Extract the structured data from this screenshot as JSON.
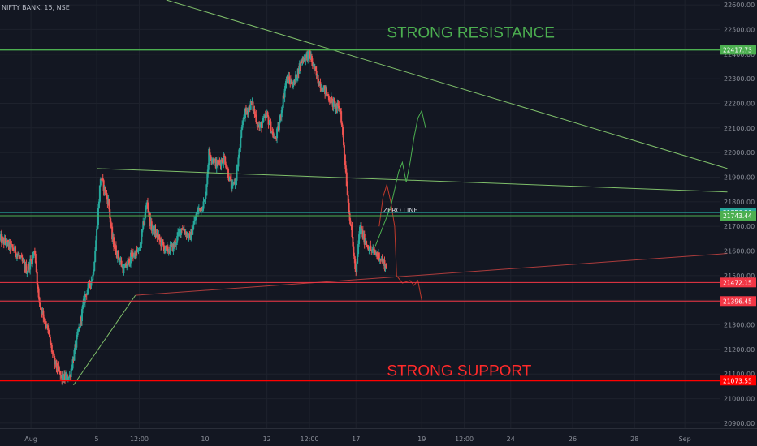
{
  "chart_data": {
    "type": "candlestick",
    "title": "NIFTY BANK, 15, NSE",
    "ylim": [
      20880,
      22620
    ],
    "y_ticks": [
      20900,
      21000,
      21100,
      21200,
      21300,
      21400,
      21500,
      21600,
      21700,
      21800,
      21900,
      22000,
      22100,
      22200,
      22300,
      22400,
      22500,
      22600
    ],
    "y_tick_labels": [
      "20900.00",
      "21000.00",
      "21100.00",
      "21200.00",
      "21300.00",
      "21400.00",
      "21500.00",
      "21600.00",
      "21700.00",
      "21800.00",
      "21900.00",
      "22000.00",
      "22100.00",
      "22200.00",
      "22300.00",
      "22400.00",
      "22500.00",
      "22600.00"
    ],
    "x_ticks": [
      {
        "label": "Aug",
        "t": 0
      },
      {
        "label": "5",
        "t": 17
      },
      {
        "label": "12:00",
        "t": 28
      },
      {
        "label": "10",
        "t": 45
      },
      {
        "label": "12",
        "t": 61
      },
      {
        "label": "12:00",
        "t": 72
      },
      {
        "label": "17",
        "t": 84
      },
      {
        "label": "19",
        "t": 101
      },
      {
        "label": "12:00",
        "t": 112
      },
      {
        "label": "24",
        "t": 124
      },
      {
        "label": "26",
        "t": 140
      },
      {
        "label": "28",
        "t": 156
      },
      {
        "label": "Sep",
        "t": 169
      }
    ],
    "x_range": [
      -8,
      178
    ],
    "price_path": [
      [
        -8,
        21650
      ],
      [
        -4,
        21600
      ],
      [
        -1,
        21520
      ],
      [
        1,
        21600
      ],
      [
        2,
        21400
      ],
      [
        4,
        21300
      ],
      [
        6,
        21150
      ],
      [
        8,
        21080
      ],
      [
        10,
        21090
      ],
      [
        12,
        21250
      ],
      [
        14,
        21420
      ],
      [
        16,
        21500
      ],
      [
        17,
        21680
      ],
      [
        18,
        21900
      ],
      [
        20,
        21800
      ],
      [
        21,
        21650
      ],
      [
        22,
        21600
      ],
      [
        24,
        21520
      ],
      [
        26,
        21580
      ],
      [
        28,
        21600
      ],
      [
        30,
        21800
      ],
      [
        31,
        21700
      ],
      [
        33,
        21650
      ],
      [
        35,
        21600
      ],
      [
        37,
        21620
      ],
      [
        39,
        21700
      ],
      [
        41,
        21650
      ],
      [
        43,
        21760
      ],
      [
        45,
        21800
      ],
      [
        46,
        22000
      ],
      [
        48,
        21950
      ],
      [
        50,
        21980
      ],
      [
        52,
        21850
      ],
      [
        53,
        21900
      ],
      [
        55,
        22150
      ],
      [
        57,
        22200
      ],
      [
        59,
        22100
      ],
      [
        61,
        22150
      ],
      [
        63,
        22050
      ],
      [
        64,
        22100
      ],
      [
        66,
        22300
      ],
      [
        68,
        22280
      ],
      [
        70,
        22380
      ],
      [
        72,
        22400
      ],
      [
        74,
        22300
      ],
      [
        76,
        22250
      ],
      [
        78,
        22200
      ],
      [
        80,
        22170
      ],
      [
        81,
        22000
      ],
      [
        82,
        21800
      ],
      [
        84,
        21500
      ],
      [
        85,
        21700
      ],
      [
        86,
        21650
      ],
      [
        88,
        21600
      ],
      [
        90,
        21580
      ],
      [
        92,
        21530
      ]
    ],
    "levels": [
      {
        "name": "STRONG RESISTANCE",
        "value": 22417.73,
        "label": "22417.73",
        "color": "#4caf50"
      },
      {
        "name": "",
        "value": 21756.2,
        "label": "21756.20",
        "color": "#26a69a"
      },
      {
        "name": "",
        "value": 21743.44,
        "label": "21743.44",
        "color": "#4caf50"
      },
      {
        "name": "",
        "value": 21472.15,
        "label": "21472.15",
        "color": "#f23645"
      },
      {
        "name": "",
        "value": 21396.45,
        "label": "21396.45",
        "color": "#f23645"
      },
      {
        "name": "STRONG SUPPORT",
        "value": 21073.55,
        "label": "21073.55",
        "color": "#ff0000"
      }
    ],
    "trendlines": [
      {
        "color": "#7fbf6a",
        "points": [
          [
            35,
            22620
          ],
          [
            180,
            21935
          ]
        ]
      },
      {
        "color": "#7fbf6a",
        "points": [
          [
            17,
            21935
          ],
          [
            180,
            21840
          ]
        ]
      },
      {
        "color": "#7fbf6a",
        "points": [
          [
            11,
            21055
          ],
          [
            27,
            21420
          ]
        ]
      },
      {
        "color": "#ad3c3c",
        "points": [
          [
            27,
            21420
          ],
          [
            180,
            21590
          ]
        ]
      }
    ],
    "projections": [
      {
        "color": "#4caf50",
        "points": [
          [
            89,
            21620
          ],
          [
            91,
            21700
          ],
          [
            93,
            21780
          ],
          [
            94,
            21850
          ],
          [
            95,
            21920
          ],
          [
            96,
            21960
          ],
          [
            97,
            21880
          ],
          [
            98,
            21960
          ],
          [
            99,
            22060
          ],
          [
            100,
            22140
          ],
          [
            101,
            22170
          ],
          [
            102,
            22100
          ]
        ]
      },
      {
        "color": "#c0392b",
        "points": [
          [
            90,
            21700
          ],
          [
            91,
            21820
          ],
          [
            92,
            21870
          ],
          [
            93,
            21800
          ],
          [
            94,
            21700
          ],
          [
            94.5,
            21500
          ],
          [
            96,
            21470
          ],
          [
            98,
            21480
          ],
          [
            99,
            21460
          ],
          [
            100,
            21480
          ],
          [
            101,
            21400
          ]
        ]
      }
    ],
    "annotations": [
      {
        "text": "STRONG RESISTANCE",
        "x": 92,
        "y": 22467,
        "color": "#4caf50"
      },
      {
        "text": "ZERO LINE",
        "x": 91,
        "y": 21756,
        "color": "#d0d4dc"
      },
      {
        "text": "STRONG SUPPORT",
        "x": 92,
        "y": 21093,
        "color": "#ff2a2a"
      }
    ]
  }
}
